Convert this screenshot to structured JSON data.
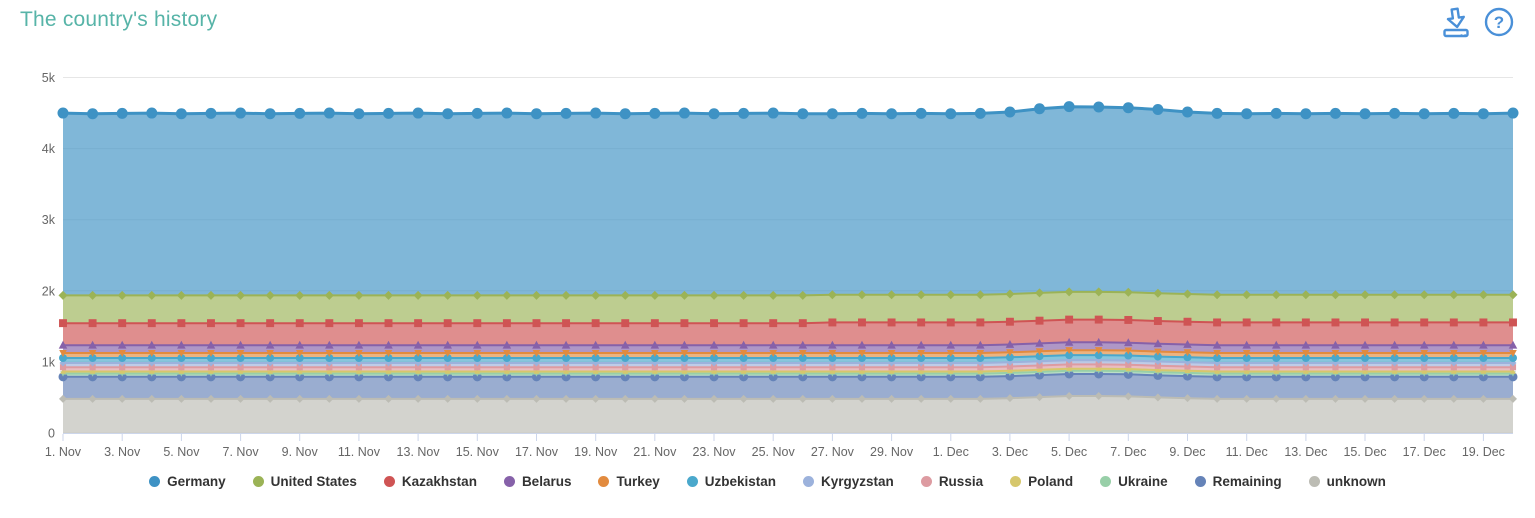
{
  "header": {
    "title": "The country's history",
    "icons": {
      "download": "download-icon",
      "help": "help-icon"
    },
    "icon_color": "#4a90d8"
  },
  "colors": {
    "title": "#57b4a8",
    "axis_label": "#666666",
    "gridline": "#e6e6e6",
    "tick": "#ccd6eb",
    "legend_text": "#333333"
  },
  "chart_data": {
    "type": "area",
    "stacked": true,
    "title": "The country's history",
    "xlabel": "",
    "ylabel": "",
    "ylim": [
      0,
      5000
    ],
    "grid": "horizontal",
    "legend_position": "bottom-center",
    "n_points": 50,
    "x_start": "1. Nov",
    "x_end": "20. Dec",
    "x_labels": [
      "1. Nov",
      "3. Nov",
      "5. Nov",
      "7. Nov",
      "9. Nov",
      "11. Nov",
      "13. Nov",
      "15. Nov",
      "17. Nov",
      "19. Nov",
      "21. Nov",
      "23. Nov",
      "25. Nov",
      "27. Nov",
      "29. Nov",
      "1. Dec",
      "3. Dec",
      "5. Dec",
      "7. Dec",
      "9. Dec",
      "11. Dec",
      "13. Dec",
      "15. Dec",
      "17. Dec",
      "19. Dec"
    ],
    "x_label_indices": [
      0,
      2,
      4,
      6,
      8,
      10,
      12,
      14,
      16,
      18,
      20,
      22,
      24,
      26,
      28,
      30,
      32,
      34,
      36,
      38,
      40,
      42,
      44,
      46,
      48
    ],
    "y_ticks": [
      {
        "v": 0,
        "label": "0"
      },
      {
        "v": 1000,
        "label": "1k"
      },
      {
        "v": 2000,
        "label": "2k"
      },
      {
        "v": 3000,
        "label": "3k"
      },
      {
        "v": 4000,
        "label": "4k"
      },
      {
        "v": 5000,
        "label": "5k"
      }
    ],
    "series": [
      {
        "name": "Germany",
        "color": "#3e92c4",
        "marker": "circle",
        "marker_r": 5.5,
        "line_width": 3,
        "values": [
          2565,
          2555,
          2560,
          2565,
          2555,
          2560,
          2565,
          2555,
          2560,
          2565,
          2555,
          2560,
          2565,
          2555,
          2560,
          2565,
          2555,
          2560,
          2565,
          2555,
          2560,
          2565,
          2555,
          2560,
          2565,
          2555,
          2545,
          2550,
          2545,
          2550,
          2545,
          2550,
          2560,
          2590,
          2605,
          2600,
          2595,
          2585,
          2560,
          2550,
          2545,
          2550,
          2545,
          2550,
          2545,
          2550,
          2545,
          2550,
          2545,
          2555
        ]
      },
      {
        "name": "United States",
        "color": "#9bb356",
        "marker": "diamond",
        "marker_r": 4.5,
        "line_width": 2,
        "values": [
          390,
          390,
          390,
          390,
          390,
          390,
          390,
          390,
          390,
          390,
          390,
          390,
          390,
          390,
          390,
          390,
          390,
          390,
          390,
          390,
          390,
          390,
          390,
          390,
          390,
          390,
          390,
          390,
          390,
          390,
          390,
          390,
          390,
          390,
          390,
          390,
          390,
          390,
          390,
          390,
          390,
          390,
          390,
          390,
          390,
          390,
          390,
          390,
          390,
          390
        ]
      },
      {
        "name": "Kazakhstan",
        "color": "#cf5454",
        "marker": "square",
        "marker_r": 4.5,
        "line_width": 2,
        "values": [
          310,
          310,
          310,
          310,
          310,
          310,
          310,
          310,
          310,
          310,
          310,
          310,
          310,
          310,
          310,
          310,
          310,
          310,
          310,
          310,
          310,
          310,
          310,
          310,
          310,
          310,
          320,
          320,
          320,
          320,
          320,
          320,
          320,
          320,
          320,
          320,
          320,
          320,
          320,
          320,
          320,
          320,
          320,
          320,
          320,
          320,
          320,
          320,
          320,
          320
        ]
      },
      {
        "name": "Belarus",
        "color": "#8661a9",
        "marker": "triangle",
        "marker_r": 4.5,
        "line_width": 2,
        "values": [
          110,
          110,
          110,
          110,
          110,
          110,
          110,
          110,
          110,
          110,
          110,
          110,
          110,
          110,
          110,
          110,
          110,
          110,
          110,
          110,
          110,
          110,
          110,
          110,
          110,
          110,
          110,
          110,
          110,
          110,
          110,
          110,
          110,
          110,
          110,
          110,
          110,
          110,
          110,
          110,
          110,
          110,
          110,
          110,
          110,
          110,
          110,
          110,
          110,
          110
        ]
      },
      {
        "name": "Turkey",
        "color": "#e28b3f",
        "marker": "triangle-down",
        "marker_r": 4,
        "line_width": 2,
        "values": [
          70,
          70,
          70,
          70,
          70,
          70,
          70,
          70,
          70,
          70,
          70,
          70,
          70,
          70,
          70,
          70,
          70,
          70,
          70,
          70,
          70,
          70,
          70,
          70,
          70,
          70,
          70,
          70,
          70,
          70,
          70,
          70,
          70,
          70,
          70,
          70,
          70,
          70,
          70,
          70,
          70,
          70,
          70,
          70,
          70,
          70,
          70,
          70,
          70,
          70
        ]
      },
      {
        "name": "Uzbekistan",
        "color": "#4aa8cc",
        "marker": "circle",
        "marker_r": 4,
        "line_width": 2,
        "values": [
          70,
          70,
          70,
          70,
          70,
          70,
          70,
          70,
          70,
          70,
          70,
          70,
          70,
          70,
          70,
          70,
          70,
          70,
          70,
          70,
          70,
          70,
          70,
          70,
          70,
          70,
          70,
          70,
          70,
          70,
          70,
          70,
          70,
          70,
          70,
          70,
          70,
          70,
          70,
          70,
          70,
          70,
          70,
          70,
          70,
          70,
          70,
          70,
          70,
          70
        ]
      },
      {
        "name": "Kyrgyzstan",
        "color": "#9cb2dc",
        "marker": "diamond",
        "marker_r": 3.5,
        "line_width": 2,
        "values": [
          60,
          60,
          60,
          60,
          60,
          60,
          60,
          60,
          60,
          60,
          60,
          60,
          60,
          60,
          60,
          60,
          60,
          60,
          60,
          60,
          60,
          60,
          60,
          60,
          60,
          60,
          60,
          60,
          60,
          60,
          60,
          60,
          60,
          60,
          60,
          60,
          60,
          60,
          60,
          60,
          60,
          60,
          60,
          60,
          60,
          60,
          60,
          60,
          60,
          60
        ]
      },
      {
        "name": "Russia",
        "color": "#dd9ba1",
        "marker": "square",
        "marker_r": 3.5,
        "line_width": 2,
        "values": [
          60,
          60,
          60,
          60,
          60,
          60,
          60,
          60,
          60,
          60,
          60,
          60,
          60,
          60,
          60,
          60,
          60,
          60,
          60,
          60,
          60,
          60,
          60,
          60,
          60,
          60,
          60,
          60,
          60,
          60,
          60,
          60,
          60,
          60,
          60,
          60,
          60,
          60,
          60,
          60,
          60,
          60,
          60,
          60,
          60,
          60,
          60,
          60,
          60,
          60
        ]
      },
      {
        "name": "Poland",
        "color": "#d6c76c",
        "marker": "triangle",
        "marker_r": 3,
        "line_width": 2,
        "values": [
          30,
          30,
          30,
          30,
          30,
          30,
          30,
          30,
          30,
          30,
          30,
          30,
          30,
          30,
          30,
          30,
          30,
          30,
          30,
          30,
          30,
          30,
          30,
          30,
          30,
          30,
          30,
          30,
          30,
          30,
          30,
          30,
          30,
          30,
          30,
          30,
          30,
          30,
          30,
          30,
          30,
          30,
          30,
          30,
          30,
          30,
          30,
          30,
          30,
          30
        ]
      },
      {
        "name": "Ukraine",
        "color": "#98cfa8",
        "marker": "triangle-down",
        "marker_r": 3,
        "line_width": 2,
        "values": [
          45,
          45,
          45,
          45,
          45,
          45,
          45,
          45,
          45,
          45,
          45,
          45,
          45,
          45,
          45,
          45,
          45,
          45,
          45,
          45,
          45,
          45,
          45,
          45,
          45,
          45,
          45,
          45,
          45,
          45,
          45,
          45,
          45,
          45,
          45,
          45,
          45,
          45,
          45,
          45,
          45,
          45,
          45,
          45,
          45,
          45,
          45,
          45,
          45,
          45
        ]
      },
      {
        "name": "Remaining",
        "color": "#6583b8",
        "marker": "circle",
        "marker_r": 4.5,
        "line_width": 2,
        "values": [
          310,
          310,
          310,
          310,
          310,
          310,
          310,
          310,
          310,
          310,
          310,
          310,
          310,
          310,
          310,
          310,
          310,
          310,
          310,
          310,
          310,
          310,
          310,
          310,
          310,
          310,
          310,
          310,
          310,
          310,
          310,
          310,
          310,
          310,
          310,
          310,
          310,
          310,
          310,
          310,
          310,
          310,
          310,
          310,
          310,
          310,
          310,
          310,
          310,
          310
        ]
      },
      {
        "name": "unknown",
        "color": "#bcbcb4",
        "marker": "diamond",
        "marker_r": 4,
        "line_width": 2,
        "values": [
          480,
          480,
          480,
          480,
          480,
          480,
          480,
          480,
          480,
          480,
          480,
          480,
          480,
          480,
          480,
          480,
          480,
          480,
          480,
          480,
          480,
          480,
          480,
          480,
          480,
          480,
          480,
          480,
          480,
          480,
          480,
          480,
          490,
          505,
          520,
          520,
          515,
          500,
          490,
          480,
          480,
          480,
          480,
          480,
          480,
          480,
          480,
          480,
          480,
          480
        ]
      }
    ]
  }
}
